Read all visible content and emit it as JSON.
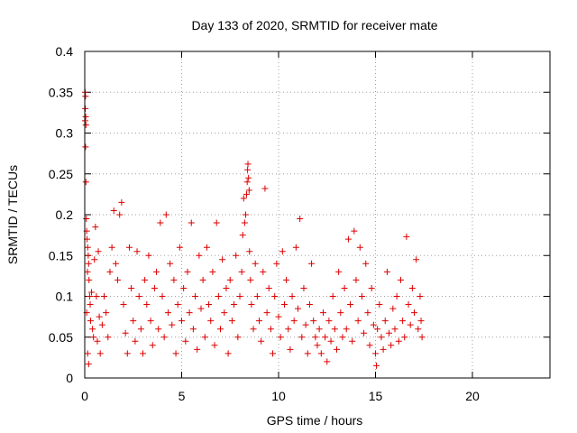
{
  "chart_data": {
    "type": "scatter",
    "title": "Day 133 of 2020, SRMTID for receiver mate",
    "xlabel": "GPS time / hours",
    "ylabel": "SRMTID / TECUs",
    "xlim": [
      0,
      24
    ],
    "ylim": [
      0,
      0.4
    ],
    "x_ticks": [
      0,
      5,
      10,
      15,
      20
    ],
    "x_tick_labels": [
      "0",
      "5",
      "10",
      "15",
      "20"
    ],
    "y_ticks": [
      0,
      0.05,
      0.1,
      0.15,
      0.2,
      0.25,
      0.3,
      0.35,
      0.4
    ],
    "y_tick_labels": [
      "0",
      "0.05",
      "0.1",
      "0.15",
      "0.2",
      "0.25",
      "0.3",
      "0.35",
      "0.4"
    ],
    "grid": true,
    "marker": "+",
    "color": "#dd0000",
    "series": [
      {
        "name": "SRMTID",
        "points": [
          [
            0.02,
            0.35
          ],
          [
            0.04,
            0.345
          ],
          [
            0.03,
            0.33
          ],
          [
            0.05,
            0.32
          ],
          [
            0.02,
            0.315
          ],
          [
            0.06,
            0.31
          ],
          [
            0.04,
            0.283
          ],
          [
            0.06,
            0.24
          ],
          [
            0.08,
            0.195
          ],
          [
            0.1,
            0.18
          ],
          [
            0.12,
            0.17
          ],
          [
            0.15,
            0.16
          ],
          [
            0.18,
            0.15
          ],
          [
            0.2,
            0.14
          ],
          [
            0.14,
            0.13
          ],
          [
            0.22,
            0.12
          ],
          [
            0.25,
            0.1
          ],
          [
            0.28,
            0.09
          ],
          [
            0.1,
            0.08
          ],
          [
            0.3,
            0.07
          ],
          [
            0.15,
            0.03
          ],
          [
            0.2,
            0.017
          ],
          [
            0.35,
            0.105
          ],
          [
            0.4,
            0.06
          ],
          [
            0.45,
            0.05
          ],
          [
            0.5,
            0.145
          ],
          [
            0.55,
            0.185
          ],
          [
            0.6,
            0.1
          ],
          [
            0.65,
            0.045
          ],
          [
            0.7,
            0.155
          ],
          [
            0.75,
            0.075
          ],
          [
            0.8,
            0.03
          ],
          [
            0.9,
            0.065
          ],
          [
            1.0,
            0.1
          ],
          [
            1.1,
            0.08
          ],
          [
            1.2,
            0.05
          ],
          [
            1.3,
            0.13
          ],
          [
            1.4,
            0.16
          ],
          [
            1.5,
            0.205
          ],
          [
            1.6,
            0.14
          ],
          [
            1.7,
            0.12
          ],
          [
            1.8,
            0.2
          ],
          [
            1.9,
            0.215
          ],
          [
            2.0,
            0.09
          ],
          [
            2.1,
            0.055
          ],
          [
            2.2,
            0.03
          ],
          [
            2.3,
            0.16
          ],
          [
            2.4,
            0.11
          ],
          [
            2.5,
            0.07
          ],
          [
            2.6,
            0.045
          ],
          [
            2.7,
            0.155
          ],
          [
            2.8,
            0.1
          ],
          [
            2.9,
            0.06
          ],
          [
            3.0,
            0.03
          ],
          [
            3.1,
            0.12
          ],
          [
            3.2,
            0.09
          ],
          [
            3.3,
            0.15
          ],
          [
            3.4,
            0.07
          ],
          [
            3.5,
            0.04
          ],
          [
            3.6,
            0.11
          ],
          [
            3.7,
            0.13
          ],
          [
            3.8,
            0.06
          ],
          [
            3.9,
            0.19
          ],
          [
            4.0,
            0.1
          ],
          [
            4.1,
            0.05
          ],
          [
            4.2,
            0.2
          ],
          [
            4.3,
            0.08
          ],
          [
            4.4,
            0.14
          ],
          [
            4.5,
            0.065
          ],
          [
            4.6,
            0.12
          ],
          [
            4.7,
            0.03
          ],
          [
            4.8,
            0.09
          ],
          [
            4.9,
            0.16
          ],
          [
            5.0,
            0.07
          ],
          [
            5.1,
            0.11
          ],
          [
            5.2,
            0.045
          ],
          [
            5.3,
            0.13
          ],
          [
            5.4,
            0.08
          ],
          [
            5.5,
            0.19
          ],
          [
            5.6,
            0.06
          ],
          [
            5.7,
            0.1
          ],
          [
            5.8,
            0.035
          ],
          [
            5.9,
            0.15
          ],
          [
            6.0,
            0.085
          ],
          [
            6.1,
            0.12
          ],
          [
            6.2,
            0.05
          ],
          [
            6.3,
            0.16
          ],
          [
            6.4,
            0.09
          ],
          [
            6.5,
            0.07
          ],
          [
            6.6,
            0.13
          ],
          [
            6.7,
            0.04
          ],
          [
            6.8,
            0.19
          ],
          [
            6.9,
            0.1
          ],
          [
            7.0,
            0.06
          ],
          [
            7.1,
            0.145
          ],
          [
            7.2,
            0.08
          ],
          [
            7.3,
            0.11
          ],
          [
            7.4,
            0.03
          ],
          [
            7.5,
            0.12
          ],
          [
            7.6,
            0.07
          ],
          [
            7.7,
            0.09
          ],
          [
            7.8,
            0.15
          ],
          [
            7.9,
            0.05
          ],
          [
            8.0,
            0.1
          ],
          [
            8.1,
            0.13
          ],
          [
            8.15,
            0.175
          ],
          [
            8.2,
            0.22
          ],
          [
            8.25,
            0.19
          ],
          [
            8.3,
            0.2
          ],
          [
            8.35,
            0.225
          ],
          [
            8.38,
            0.24
          ],
          [
            8.4,
            0.255
          ],
          [
            8.42,
            0.262
          ],
          [
            8.45,
            0.245
          ],
          [
            8.48,
            0.23
          ],
          [
            8.5,
            0.155
          ],
          [
            8.55,
            0.12
          ],
          [
            8.6,
            0.09
          ],
          [
            8.7,
            0.06
          ],
          [
            8.8,
            0.14
          ],
          [
            8.9,
            0.1
          ],
          [
            9.0,
            0.07
          ],
          [
            9.1,
            0.045
          ],
          [
            9.2,
            0.13
          ],
          [
            9.3,
            0.232
          ],
          [
            9.4,
            0.08
          ],
          [
            9.5,
            0.11
          ],
          [
            9.6,
            0.06
          ],
          [
            9.7,
            0.03
          ],
          [
            9.8,
            0.1
          ],
          [
            9.9,
            0.14
          ],
          [
            10.0,
            0.075
          ],
          [
            10.1,
            0.05
          ],
          [
            10.2,
            0.155
          ],
          [
            10.3,
            0.09
          ],
          [
            10.4,
            0.12
          ],
          [
            10.5,
            0.06
          ],
          [
            10.6,
            0.035
          ],
          [
            10.7,
            0.1
          ],
          [
            10.8,
            0.07
          ],
          [
            10.9,
            0.16
          ],
          [
            11.0,
            0.085
          ],
          [
            11.1,
            0.195
          ],
          [
            11.2,
            0.05
          ],
          [
            11.3,
            0.11
          ],
          [
            11.4,
            0.065
          ],
          [
            11.5,
            0.03
          ],
          [
            11.6,
            0.09
          ],
          [
            11.7,
            0.14
          ],
          [
            11.8,
            0.07
          ],
          [
            11.9,
            0.05
          ],
          [
            12.0,
            0.04
          ],
          [
            12.1,
            0.06
          ],
          [
            12.2,
            0.03
          ],
          [
            12.3,
            0.08
          ],
          [
            12.4,
            0.05
          ],
          [
            12.5,
            0.02
          ],
          [
            12.6,
            0.07
          ],
          [
            12.7,
            0.045
          ],
          [
            12.8,
            0.1
          ],
          [
            12.9,
            0.06
          ],
          [
            13.0,
            0.035
          ],
          [
            13.1,
            0.13
          ],
          [
            13.2,
            0.08
          ],
          [
            13.3,
            0.05
          ],
          [
            13.4,
            0.11
          ],
          [
            13.5,
            0.06
          ],
          [
            13.6,
            0.17
          ],
          [
            13.7,
            0.09
          ],
          [
            13.8,
            0.045
          ],
          [
            13.9,
            0.18
          ],
          [
            14.0,
            0.12
          ],
          [
            14.1,
            0.07
          ],
          [
            14.2,
            0.16
          ],
          [
            14.3,
            0.1
          ],
          [
            14.4,
            0.055
          ],
          [
            14.5,
            0.14
          ],
          [
            14.6,
            0.08
          ],
          [
            14.7,
            0.04
          ],
          [
            14.8,
            0.11
          ],
          [
            14.9,
            0.065
          ],
          [
            15.0,
            0.03
          ],
          [
            15.05,
            0.015
          ],
          [
            15.1,
            0.06
          ],
          [
            15.2,
            0.09
          ],
          [
            15.3,
            0.05
          ],
          [
            15.4,
            0.035
          ],
          [
            15.5,
            0.07
          ],
          [
            15.6,
            0.13
          ],
          [
            15.7,
            0.055
          ],
          [
            15.8,
            0.04
          ],
          [
            15.9,
            0.085
          ],
          [
            16.0,
            0.06
          ],
          [
            16.1,
            0.1
          ],
          [
            16.2,
            0.045
          ],
          [
            16.3,
            0.12
          ],
          [
            16.4,
            0.07
          ],
          [
            16.5,
            0.05
          ],
          [
            16.6,
            0.173
          ],
          [
            16.7,
            0.09
          ],
          [
            16.8,
            0.065
          ],
          [
            16.9,
            0.11
          ],
          [
            17.0,
            0.08
          ],
          [
            17.1,
            0.145
          ],
          [
            17.2,
            0.06
          ],
          [
            17.3,
            0.1
          ],
          [
            17.35,
            0.07
          ],
          [
            17.4,
            0.05
          ]
        ]
      }
    ]
  }
}
